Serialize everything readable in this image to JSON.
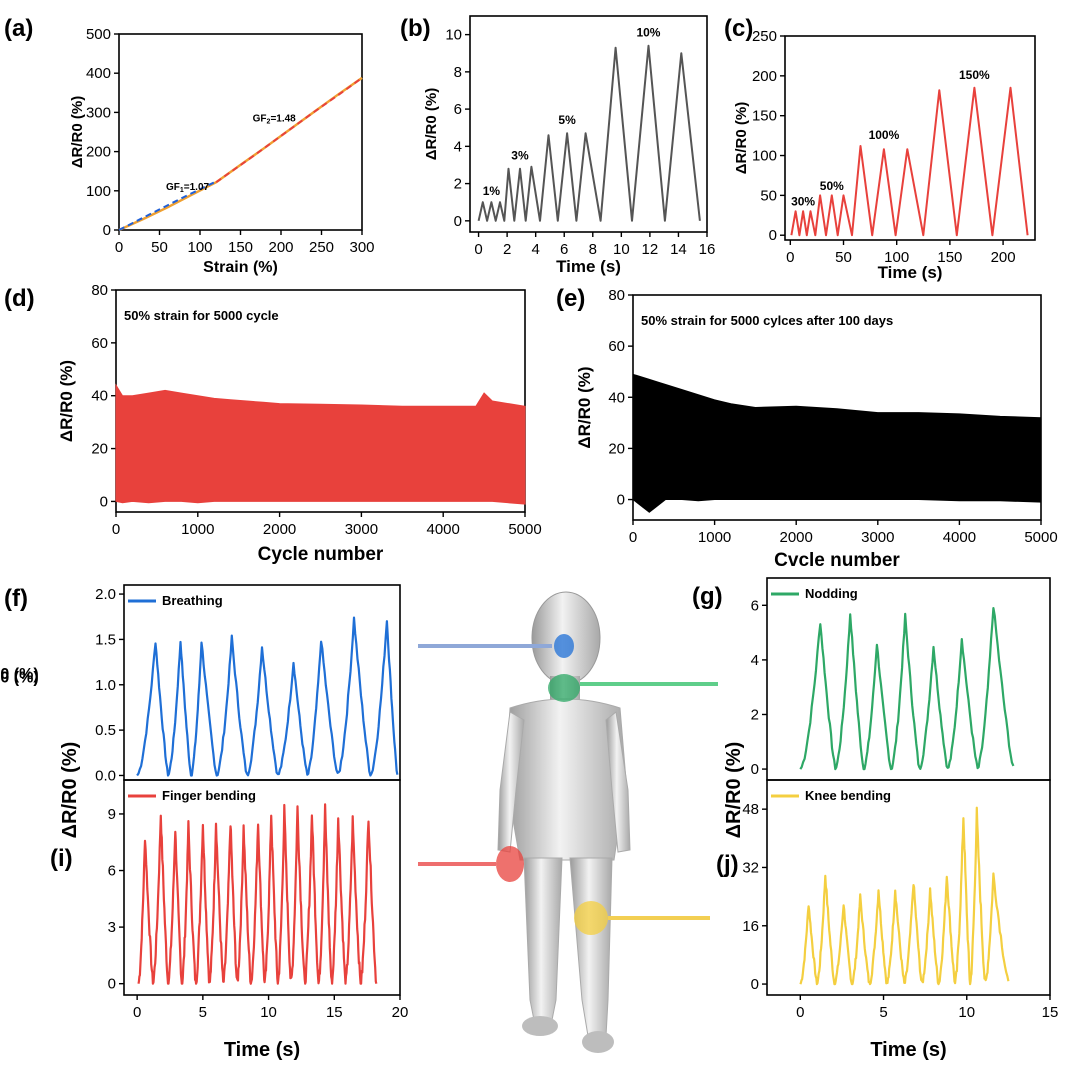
{
  "colors": {
    "orange": "#f0a030",
    "blue": "#2060d8",
    "gray": "#555555",
    "red": "#e8413c",
    "black": "#000000",
    "bluef": "#1f6fd6",
    "green": "#2ea866",
    "yellow": "#f4cf40",
    "conn_blue": "#8fa8d8",
    "conn_green": "#5fce8a",
    "conn_red": "#ee6e6e",
    "conn_yellow": "#f3cf53"
  },
  "figure": {
    "illustration": "human-figure-with-sensor-markers"
  },
  "chart_data": [
    {
      "id": "a",
      "panel_label": "(a)",
      "type": "line",
      "xlabel": "Strain (%)",
      "ylabel": "ΔR/R0 (%)",
      "xlim": [
        0,
        300
      ],
      "ylim": [
        0,
        500
      ],
      "xticks": [
        0,
        50,
        100,
        150,
        200,
        250,
        300
      ],
      "yticks": [
        0,
        100,
        200,
        300,
        400,
        500
      ],
      "series": [
        {
          "color_key": "orange",
          "x": [
            0,
            30,
            60,
            90,
            120,
            150,
            180,
            210,
            240,
            270,
            300
          ],
          "y": [
            0,
            28,
            58,
            90,
            122,
            166,
            210,
            255,
            300,
            345,
            388
          ]
        },
        {
          "color_key": "blue",
          "dashed": true,
          "x": [
            0,
            40,
            80,
            120
          ],
          "y": [
            0,
            42,
            84,
            124
          ]
        },
        {
          "color_key": "red",
          "dashed": true,
          "x": [
            120,
            160,
            200,
            240,
            280,
            300
          ],
          "y": [
            122,
            180,
            240,
            300,
            358,
            388
          ]
        }
      ],
      "annotations": [
        {
          "prefix": "GF",
          "sub": "1",
          "suffix": "=1.07",
          "x": 58,
          "y": 102
        },
        {
          "prefix": "GF",
          "sub": "2",
          "suffix": "=1.48",
          "x": 165,
          "y": 277
        }
      ]
    },
    {
      "id": "b",
      "panel_label": "(b)",
      "type": "line",
      "xlabel": "Time (s)",
      "ylabel": "ΔR/R0 (%)",
      "xlim": [
        -0.6,
        16
      ],
      "ylim": [
        -0.6,
        11
      ],
      "xticks": [
        0,
        2,
        4,
        6,
        8,
        10,
        12,
        14,
        16
      ],
      "yticks": [
        0,
        2,
        4,
        6,
        8,
        10
      ],
      "series": [
        {
          "color_key": "gray",
          "peaks": [
            [
              0.3,
              1.0
            ],
            [
              0.9,
              1.0
            ],
            [
              1.5,
              1.0
            ],
            [
              2.1,
              2.8
            ],
            [
              2.9,
              2.8
            ],
            [
              3.7,
              2.9
            ],
            [
              4.9,
              4.6
            ],
            [
              6.2,
              4.7
            ],
            [
              7.5,
              4.7
            ],
            [
              9.6,
              9.3
            ],
            [
              11.9,
              9.4
            ],
            [
              14.2,
              9.0
            ]
          ],
          "start": 0,
          "end": 15.5
        }
      ],
      "annotations": [
        {
          "text": "1%",
          "x": 0.9,
          "y": 1.4
        },
        {
          "text": "3%",
          "x": 2.9,
          "y": 3.3
        },
        {
          "text": "5%",
          "x": 6.2,
          "y": 5.2
        },
        {
          "text": "10%",
          "x": 11.9,
          "y": 9.9
        }
      ]
    },
    {
      "id": "c",
      "panel_label": "(c)",
      "type": "line",
      "xlabel": "Time (s)",
      "ylabel": "ΔR/R0 (%)",
      "xlim": [
        -5,
        230
      ],
      "ylim": [
        -6,
        250
      ],
      "xticks": [
        0,
        50,
        100,
        150,
        200
      ],
      "yticks": [
        0,
        50,
        100,
        150,
        200,
        250
      ],
      "series": [
        {
          "color_key": "red",
          "peaks": [
            [
              5,
              30
            ],
            [
              12,
              30
            ],
            [
              19,
              30
            ],
            [
              28,
              50
            ],
            [
              39,
              50
            ],
            [
              50,
              50
            ],
            [
              66,
              112
            ],
            [
              88,
              108
            ],
            [
              110,
              108
            ],
            [
              140,
              182
            ],
            [
              173,
              185
            ],
            [
              207,
              185
            ]
          ],
          "start": 1,
          "end": 223
        }
      ],
      "annotations": [
        {
          "text": "30%",
          "x": 12,
          "y": 37
        },
        {
          "text": "50%",
          "x": 39,
          "y": 57
        },
        {
          "text": "100%",
          "x": 88,
          "y": 121
        },
        {
          "text": "150%",
          "x": 173,
          "y": 196
        }
      ]
    },
    {
      "id": "d",
      "panel_label": "(d)",
      "type": "area",
      "xlabel": "Cycle number",
      "ylabel": "ΔR/R0 (%)",
      "xlim": [
        0,
        5000
      ],
      "ylim": [
        -4,
        80
      ],
      "xticks": [
        0,
        1000,
        2000,
        3000,
        4000,
        5000
      ],
      "yticks": [
        0,
        20,
        40,
        60,
        80
      ],
      "legend_text": "50% strain for 5000 cycle",
      "series": [
        {
          "color_key": "red",
          "upper_x": [
            0,
            80,
            200,
            400,
            600,
            800,
            1000,
            1200,
            1400,
            1600,
            1800,
            2000,
            2500,
            3000,
            3500,
            4000,
            4400,
            4500,
            4600,
            5000
          ],
          "upper_y": [
            44,
            40,
            40,
            41,
            42,
            41,
            40,
            39,
            38.5,
            38,
            37.5,
            37,
            36.8,
            36.5,
            36,
            36,
            36,
            41,
            38,
            36
          ],
          "lower_y": [
            0,
            -0.5,
            0,
            -0.5,
            0,
            0,
            -0.5,
            0,
            0,
            0,
            0,
            0,
            0,
            0,
            0,
            0,
            0,
            0,
            0,
            -1
          ]
        }
      ]
    },
    {
      "id": "e",
      "panel_label": "(e)",
      "type": "area",
      "xlabel": "Cvcle number",
      "ylabel": "ΔR/R0 (%)",
      "xlim": [
        0,
        5000
      ],
      "ylim": [
        -8,
        80
      ],
      "xticks": [
        0,
        1000,
        2000,
        3000,
        4000,
        5000
      ],
      "yticks": [
        0,
        20,
        40,
        60,
        80
      ],
      "legend_text": "50% strain for 5000 cylces after 100 days",
      "series": [
        {
          "color_key": "black",
          "upper_x": [
            0,
            200,
            400,
            600,
            800,
            1000,
            1200,
            1500,
            2000,
            2500,
            3000,
            3500,
            4000,
            4500,
            5000
          ],
          "upper_y": [
            49,
            47,
            45,
            43,
            41,
            39,
            37.5,
            36,
            36.5,
            35.5,
            34,
            34,
            33.5,
            32.5,
            32
          ],
          "lower_y": [
            0,
            -5,
            0,
            0,
            -0.5,
            0,
            0,
            0,
            0,
            0,
            0,
            0,
            -0.5,
            -0.5,
            -1
          ]
        }
      ]
    },
    {
      "id": "f",
      "panel_label": "(f)",
      "type": "line",
      "ylabel": "ΔR/R0 (%)",
      "xlim": [
        -1,
        20
      ],
      "ylim": [
        -0.05,
        2.1
      ],
      "xticks": [
        0,
        5,
        10,
        15,
        20
      ],
      "yticks": [
        0.0,
        0.5,
        1.0,
        1.5,
        2.0
      ],
      "ytick_labels": [
        "0.0",
        "0.5",
        "1.0",
        "1.5",
        "2.0"
      ],
      "series": [
        {
          "name": "Breathing",
          "color_key": "bluef",
          "start": 0.0,
          "end": 19.8,
          "peaks": [
            [
              1.4,
              1.48
            ],
            [
              3.3,
              1.48
            ],
            [
              4.9,
              1.48
            ],
            [
              7.2,
              1.52
            ],
            [
              9.5,
              1.42
            ],
            [
              11.9,
              1.25
            ],
            [
              14.0,
              1.5
            ],
            [
              16.5,
              1.73
            ],
            [
              19.0,
              1.72
            ]
          ]
        }
      ]
    },
    {
      "id": "i",
      "panel_label": "(i)",
      "type": "line",
      "xlabel": "Time (s)",
      "xlim": [
        -1,
        20
      ],
      "ylim": [
        -0.6,
        10.8
      ],
      "xticks": [
        0,
        5,
        10,
        15,
        20
      ],
      "yticks": [
        0,
        3,
        6,
        9
      ],
      "series": [
        {
          "name": "Finger bending",
          "color_key": "red",
          "start": 0.1,
          "end": 18.2,
          "peaks": [
            [
              0.6,
              7.8
            ],
            [
              1.8,
              9.0
            ],
            [
              2.9,
              8.2
            ],
            [
              3.9,
              8.4
            ],
            [
              5.0,
              8.5
            ],
            [
              6.0,
              8.6
            ],
            [
              7.1,
              8.6
            ],
            [
              8.1,
              8.3
            ],
            [
              9.2,
              8.6
            ],
            [
              10.2,
              9.0
            ],
            [
              11.2,
              9.2
            ],
            [
              12.2,
              9.3
            ],
            [
              13.3,
              9.0
            ],
            [
              14.3,
              9.3
            ],
            [
              15.3,
              8.9
            ],
            [
              16.4,
              8.7
            ],
            [
              17.6,
              8.9
            ]
          ]
        }
      ]
    },
    {
      "id": "g",
      "panel_label": "(g)",
      "type": "line",
      "ylabel": "ΔR/R0 (%)",
      "xlim": [
        -2,
        15
      ],
      "ylim": [
        -0.4,
        7.0
      ],
      "xticks": [
        0,
        5,
        10,
        15
      ],
      "yticks": [
        0,
        2,
        4,
        6
      ],
      "series": [
        {
          "name": "Nodding",
          "color_key": "green",
          "start": 0.0,
          "end": 12.8,
          "peaks": [
            [
              1.2,
              5.4
            ],
            [
              3.0,
              5.7
            ],
            [
              4.6,
              4.6
            ],
            [
              6.3,
              5.6
            ],
            [
              8.0,
              4.5
            ],
            [
              9.7,
              4.8
            ],
            [
              11.6,
              6.0
            ]
          ]
        }
      ]
    },
    {
      "id": "j",
      "panel_label": "(j)",
      "type": "line",
      "xlabel": "Time (s)",
      "xlim": [
        -2,
        15
      ],
      "ylim": [
        -3,
        56
      ],
      "xticks": [
        0,
        5,
        10,
        15
      ],
      "yticks": [
        0,
        16,
        32,
        48
      ],
      "series": [
        {
          "name": "Knee bending",
          "color_key": "yellow",
          "start": 0.0,
          "end": 12.5,
          "peaks": [
            [
              0.5,
              22
            ],
            [
              1.5,
              30
            ],
            [
              2.6,
              22
            ],
            [
              3.6,
              24
            ],
            [
              4.7,
              26
            ],
            [
              5.7,
              26
            ],
            [
              6.8,
              28
            ],
            [
              7.8,
              26
            ],
            [
              8.8,
              30
            ],
            [
              9.8,
              46
            ],
            [
              10.6,
              47
            ],
            [
              11.6,
              30
            ]
          ]
        }
      ]
    }
  ]
}
